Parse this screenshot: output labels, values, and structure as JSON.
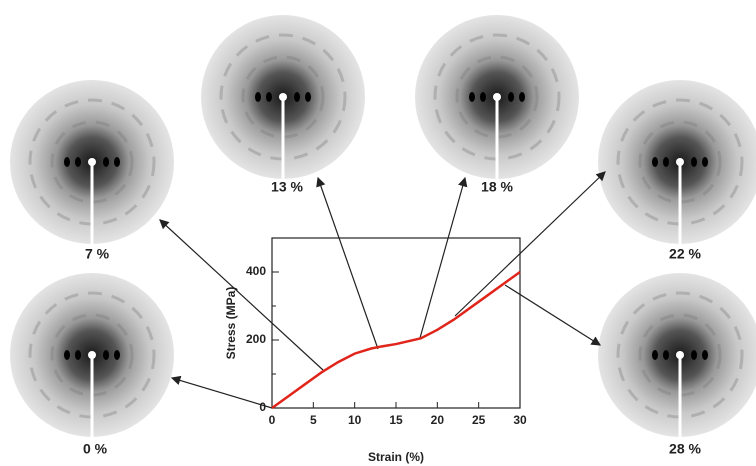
{
  "chart_data": {
    "type": "line",
    "x_label": "Strain (%)",
    "y_label": "Stress (MPa)",
    "x": [
      0,
      2,
      4,
      6,
      8,
      10,
      12,
      13,
      15,
      18,
      20,
      22,
      24,
      26,
      28,
      30
    ],
    "series": [
      {
        "name": "Stress",
        "color": "#e0251b",
        "values": [
          0,
          35,
          70,
          105,
          135,
          160,
          175,
          180,
          188,
          205,
          230,
          260,
          295,
          330,
          365,
          400
        ]
      }
    ],
    "xlim": [
      0,
      30
    ],
    "xticks": [
      0,
      5,
      10,
      15,
      20,
      25,
      30
    ],
    "ylim": [
      0,
      500
    ],
    "yticks": [
      0,
      200,
      400
    ],
    "yminor": [
      100,
      300
    ],
    "annotations": [
      "0 %",
      "7 %",
      "13 %",
      "18 %",
      "22 %",
      "28 %"
    ]
  }
}
